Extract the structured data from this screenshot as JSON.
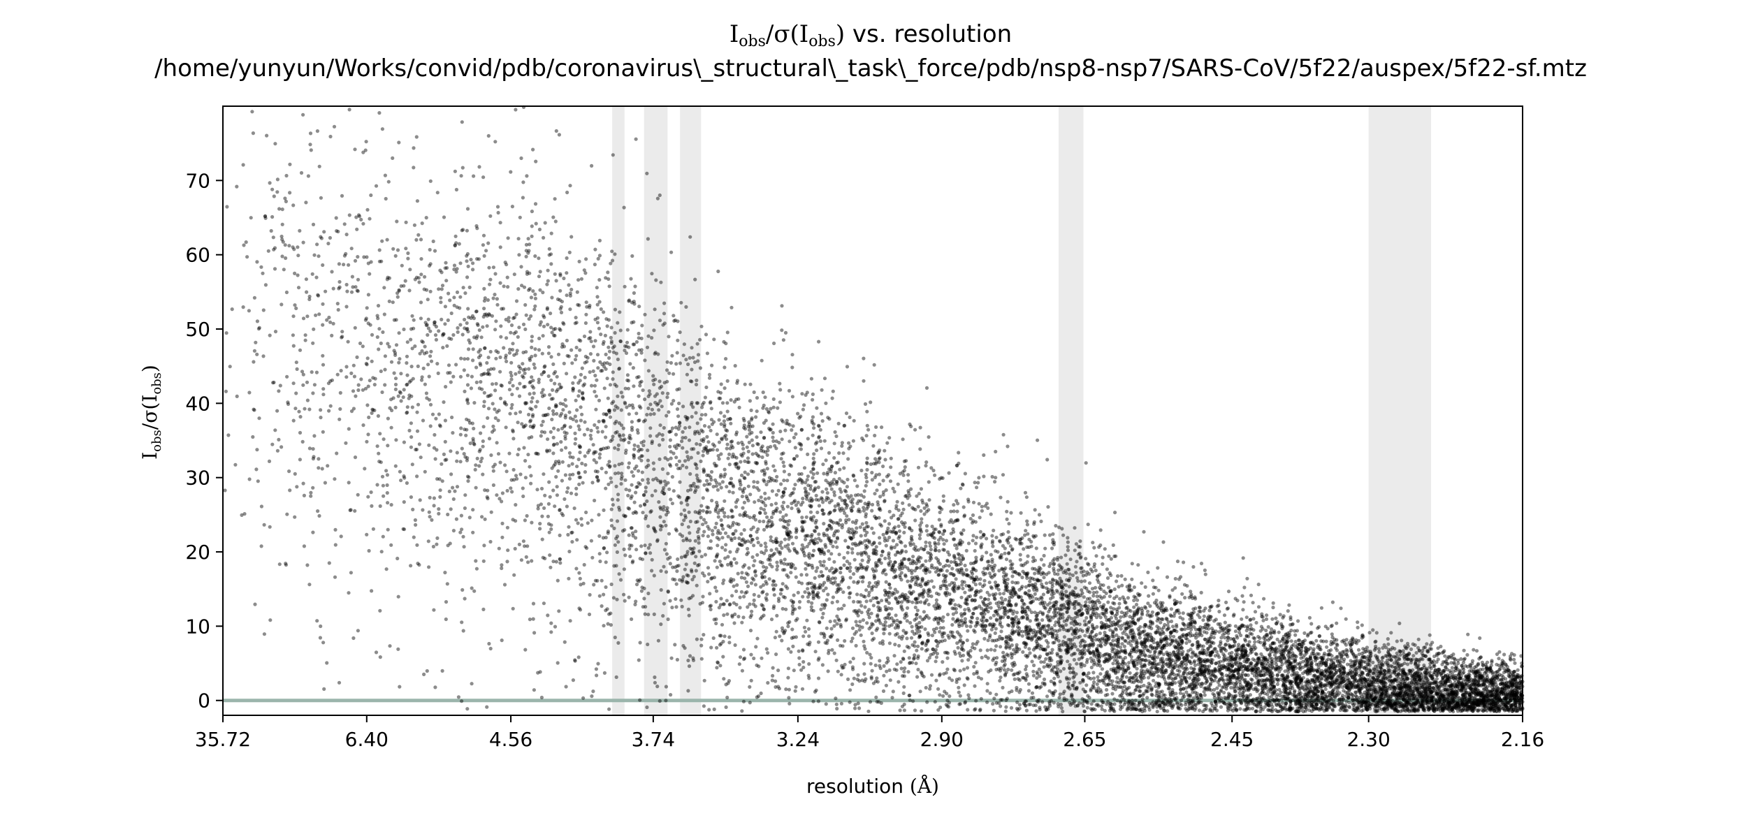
{
  "chart_data": {
    "type": "scatter",
    "title_line1": "Iobs/σ(Iobs) vs. resolution",
    "title_line2": "/home/yunyun/Works/convid/pdb/coronavirus\\_structural\\_task\\_force/pdb/nsp8-nsp7/SARS-CoV/5f22/auspex/5f22-sf.mtz",
    "ylabel": "Iobs/σ(Iobs)",
    "xlabel": "resolution (Å)",
    "x_scale": "reciprocal-squared resolution (1/d²)",
    "xlim_resolution": [
      35.72,
      2.16
    ],
    "ylim": [
      -2,
      80
    ],
    "x_tick_labels": [
      "35.72",
      "6.40",
      "4.56",
      "3.74",
      "3.24",
      "2.90",
      "2.65",
      "2.45",
      "2.30",
      "2.16"
    ],
    "y_ticks": [
      0,
      10,
      20,
      30,
      40,
      50,
      60,
      70
    ],
    "grid": false,
    "ice_ring_bands_resolution": [
      [
        3.93,
        3.87
      ],
      [
        3.78,
        3.68
      ],
      [
        3.63,
        3.55
      ],
      [
        2.691,
        2.652
      ],
      [
        2.3,
        2.24
      ]
    ],
    "zero_line_y": 0,
    "point_color": "#000000",
    "point_opacity": 0.45,
    "band_color": "#ebebeb",
    "zero_line_color": "#9bb5ac",
    "envelope": {
      "resolution": [
        35.72,
        8.0,
        6.4,
        5.2,
        4.56,
        4.2,
        3.9,
        3.74,
        3.5,
        3.24,
        3.05,
        2.9,
        2.75,
        2.65,
        2.55,
        2.45,
        2.35,
        2.3,
        2.22,
        2.16
      ],
      "mean": [
        48,
        48,
        45,
        44,
        44,
        40,
        36,
        33,
        28,
        23,
        19,
        15,
        12,
        9,
        6,
        4.5,
        3,
        2.2,
        1.2,
        0.8
      ],
      "sd": [
        16,
        16,
        16,
        15,
        14,
        14,
        13,
        13,
        11,
        10,
        9,
        8,
        7,
        6,
        5,
        4,
        3.5,
        3,
        2.5,
        2
      ]
    }
  }
}
